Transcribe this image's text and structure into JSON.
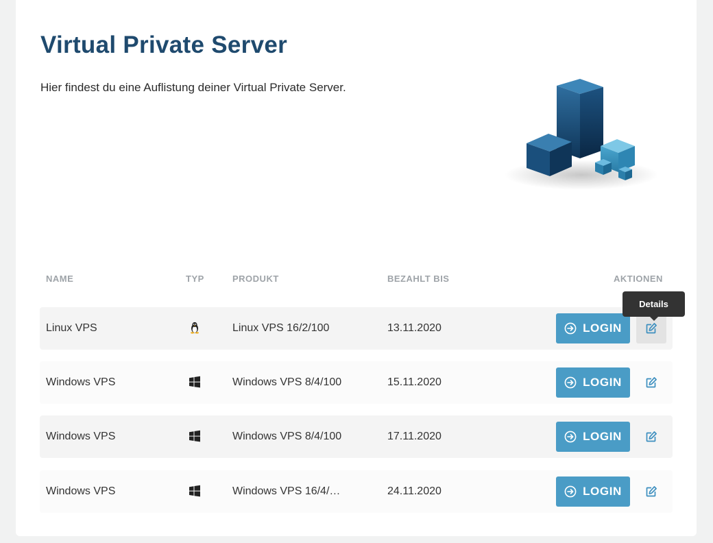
{
  "page": {
    "title": "Virtual Private Server",
    "intro": "Hier findest du eine Auflistung deiner Virtual Private Server."
  },
  "table": {
    "headers": {
      "name": "NAME",
      "typ": "TYP",
      "produkt": "PRODUKT",
      "bezahlt_bis": "BEZAHLT BIS",
      "aktionen": "AKTIONEN"
    },
    "rows": [
      {
        "name": "Linux VPS",
        "typ_icon": "linux-icon",
        "produkt": "Linux VPS 16/2/100",
        "bezahlt_bis": "13.11.2020",
        "login_label": "LOGIN",
        "details_icon": "edit-icon"
      },
      {
        "name": "Windows VPS",
        "typ_icon": "windows-icon",
        "produkt": "Windows VPS 8/4/100",
        "bezahlt_bis": "15.11.2020",
        "login_label": "LOGIN",
        "details_icon": "edit-icon"
      },
      {
        "name": "Windows VPS",
        "typ_icon": "windows-icon",
        "produkt": "Windows VPS 8/4/100",
        "bezahlt_bis": "17.11.2020",
        "login_label": "LOGIN",
        "details_icon": "edit-icon"
      },
      {
        "name": "Windows VPS",
        "typ_icon": "windows-icon",
        "produkt": "Windows VPS 16/4/…",
        "bezahlt_bis": "24.11.2020",
        "login_label": "LOGIN",
        "details_icon": "edit-icon"
      }
    ]
  },
  "tooltip": {
    "text": "Details"
  },
  "colors": {
    "title": "#1f4a6e",
    "accent": "#4a9cc6",
    "header_text": "#9ea3a8",
    "tooltip_bg": "#333333"
  }
}
